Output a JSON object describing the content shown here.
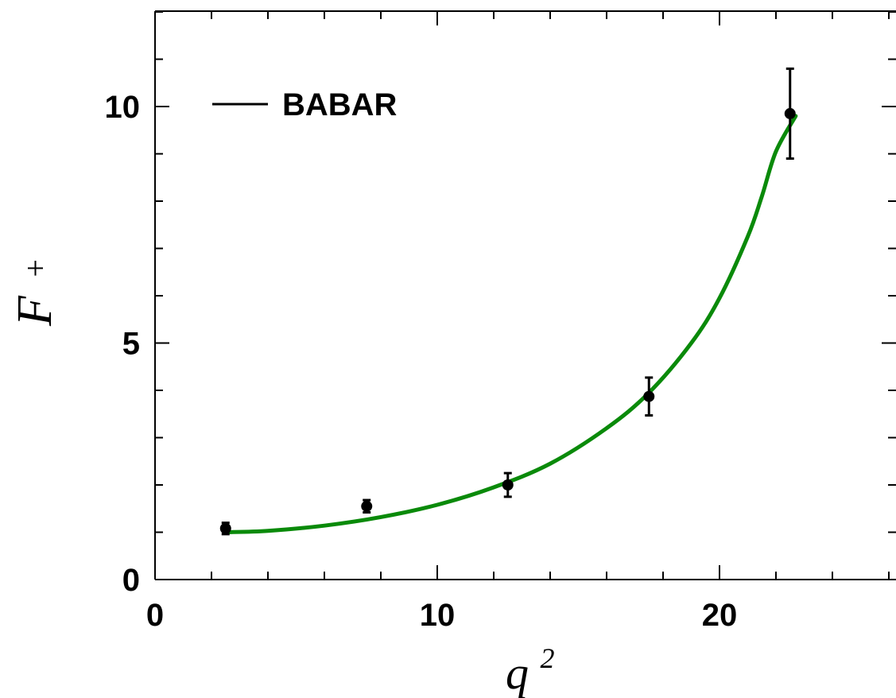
{
  "chart_data": {
    "type": "scatter",
    "xlabel": "q",
    "xlabel_sup": "2",
    "ylabel": "F",
    "ylabel_sub": "+",
    "xlim": [
      0,
      26
    ],
    "ylim": [
      0,
      12
    ],
    "x_ticks": [
      0,
      10,
      20
    ],
    "y_ticks": [
      0,
      5,
      10
    ],
    "x_minor_step": 2,
    "y_minor_step": 1,
    "grid": false,
    "legend_position": "top-left",
    "legend": [
      {
        "label": "BABAR",
        "color": "#000000"
      }
    ],
    "series": [
      {
        "name": "BABAR",
        "type": "scatter",
        "color": "#000000",
        "x": [
          2.5,
          7.5,
          12.5,
          17.5,
          22.5
        ],
        "y": [
          1.08,
          1.55,
          2.0,
          3.87,
          9.85
        ],
        "yerr": [
          0.12,
          0.13,
          0.25,
          0.4,
          0.95
        ]
      },
      {
        "type": "line",
        "color": "#0a8a0a",
        "x": [
          2.5,
          4,
          6,
          8,
          10,
          12,
          14,
          16,
          17.5,
          19,
          20,
          21,
          21.5,
          22,
          22.7
        ],
        "y": [
          1.0,
          1.03,
          1.14,
          1.32,
          1.58,
          1.95,
          2.45,
          3.2,
          3.95,
          5.0,
          5.95,
          7.25,
          8.1,
          9.05,
          9.8
        ]
      }
    ]
  }
}
